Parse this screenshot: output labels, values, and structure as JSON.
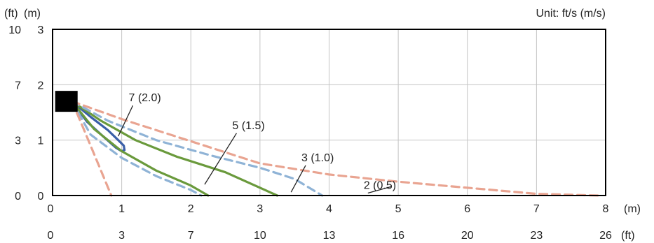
{
  "chart_data": {
    "type": "line",
    "unit_label": "Unit: ft/s (m/s)",
    "y_axis_units": {
      "left": "(ft)",
      "right": "(m)"
    },
    "x_axis_units": {
      "top_row": "(m)",
      "bottom_row": "(ft)"
    },
    "x_range_m": [
      0,
      8
    ],
    "y_range_m": [
      0,
      3
    ],
    "grid": true,
    "x_ticks_m": [
      "0",
      "1",
      "2",
      "3",
      "4",
      "5",
      "6",
      "7",
      "8"
    ],
    "x_ticks_ft": [
      "0",
      "3",
      "7",
      "10",
      "13",
      "16",
      "20",
      "23",
      "26"
    ],
    "y_ticks": [
      {
        "m": "3",
        "ft": "10",
        "value": 3
      },
      {
        "m": "2",
        "ft": "7",
        "value": 2
      },
      {
        "m": "1",
        "ft": "3",
        "value": 1
      },
      {
        "m": "0",
        "ft": "0",
        "value": 0
      }
    ],
    "source_point": {
      "x": 0.2,
      "y": 1.7
    },
    "series": [
      {
        "label": "7 (2.0)",
        "color": "#3a5fa8",
        "dash": false,
        "points": [
          [
            0.28,
            1.7
          ],
          [
            0.55,
            1.42
          ],
          [
            0.8,
            1.18
          ],
          [
            0.95,
            1.0
          ],
          [
            1.03,
            0.9
          ],
          [
            1.04,
            0.82
          ],
          [
            1.0,
            0.8
          ],
          [
            0.92,
            0.86
          ],
          [
            0.72,
            1.08
          ],
          [
            0.5,
            1.33
          ],
          [
            0.28,
            1.7
          ]
        ]
      },
      {
        "label": "5 (1.5)",
        "color": "#6a9a3c",
        "dash": false,
        "points": [
          [
            [
              0.28,
              1.7
            ],
            [
              0.7,
              1.35
            ],
            [
              1.2,
              1.0
            ],
            [
              1.8,
              0.7
            ],
            [
              2.5,
              0.42
            ],
            [
              3.25,
              0.0
            ]
          ],
          [
            [
              0.28,
              1.7
            ],
            [
              0.6,
              1.2
            ],
            [
              1.0,
              0.8
            ],
            [
              1.5,
              0.45
            ],
            [
              2.0,
              0.18
            ],
            [
              2.25,
              0.0
            ]
          ]
        ]
      },
      {
        "label": "3 (1.0)",
        "color": "#8fb3d6",
        "dash": true,
        "points": [
          [
            [
              0.28,
              1.7
            ],
            [
              0.8,
              1.35
            ],
            [
              1.5,
              1.0
            ],
            [
              2.3,
              0.72
            ],
            [
              3.0,
              0.5
            ],
            [
              3.5,
              0.3
            ],
            [
              3.9,
              0.0
            ]
          ],
          [
            [
              0.28,
              1.7
            ],
            [
              0.55,
              1.1
            ],
            [
              1.0,
              0.68
            ],
            [
              1.5,
              0.35
            ],
            [
              2.0,
              0.1
            ],
            [
              2.15,
              0.0
            ]
          ]
        ]
      },
      {
        "label": "2 (0.5)",
        "color": "#e9a491",
        "dash": true,
        "points": [
          [
            [
              0.28,
              1.7
            ],
            [
              1.0,
              1.38
            ],
            [
              2.0,
              0.98
            ],
            [
              3.0,
              0.58
            ],
            [
              4.0,
              0.38
            ],
            [
              5.0,
              0.25
            ],
            [
              6.0,
              0.14
            ],
            [
              7.0,
              0.03
            ],
            [
              7.9,
              0.0
            ]
          ],
          [
            [
              0.28,
              1.7
            ],
            [
              0.45,
              1.2
            ],
            [
              0.65,
              0.6
            ],
            [
              0.85,
              0.0
            ]
          ]
        ]
      }
    ],
    "annotations": [
      {
        "text": "7 (2.0)",
        "series": 0,
        "target": [
          0.95,
          1.07
        ],
        "label_pos": [
          1.1,
          1.7
        ]
      },
      {
        "text": "5 (1.5)",
        "series": 1,
        "target": [
          2.2,
          0.2
        ],
        "label_pos": [
          2.6,
          1.2
        ]
      },
      {
        "text": "3 (1.0)",
        "series": 2,
        "target": [
          3.45,
          0.06
        ],
        "label_pos": [
          3.6,
          0.62
        ]
      },
      {
        "text": "2 (0.5)",
        "series": 3,
        "target": [
          4.9,
          0.16
        ],
        "label_pos": [
          4.5,
          0.12
        ]
      }
    ]
  }
}
